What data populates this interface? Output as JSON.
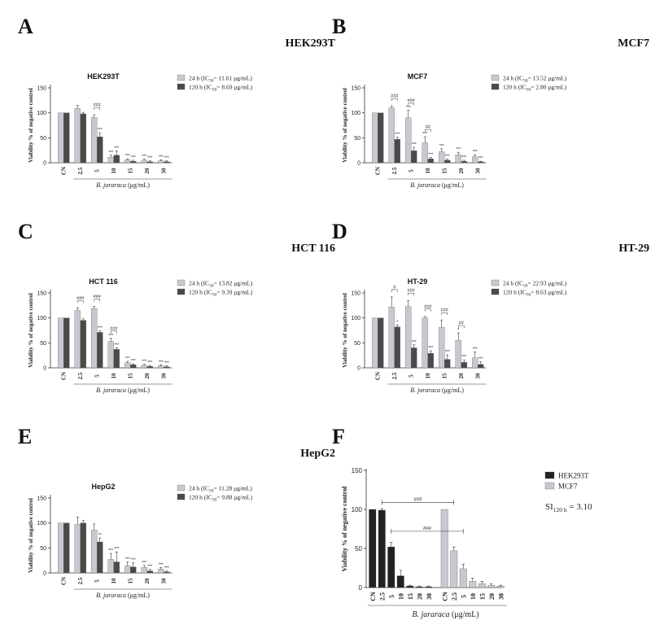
{
  "figure": {
    "x_label_species": "B. jararaca",
    "x_label_unit": "(μg/mL)",
    "y_label": "Viability % of negative control"
  },
  "panels": [
    {
      "letter": "A",
      "title": "HEK293T"
    },
    {
      "letter": "B",
      "title": "MCF7"
    },
    {
      "letter": "C",
      "title": "HCT 116"
    },
    {
      "letter": "D",
      "title": "HT-29"
    },
    {
      "letter": "E",
      "title": "HepG2"
    },
    {
      "letter": "F",
      "title": ""
    }
  ],
  "colors": {
    "light": "#c8c9d0",
    "dark": "#4a4a4a",
    "black": "#222222"
  },
  "chart_data": [
    {
      "type": "bar",
      "title": "HEK293T",
      "ylabel": "Viability % of negative control",
      "xlabel": "B. jararaca (μg/mL)",
      "ylim": [
        0,
        150
      ],
      "categories": [
        "CN",
        "2.5",
        "5",
        "10",
        "15",
        "20",
        "30"
      ],
      "series": [
        {
          "name": "24 h (IC50= 11.61 μg/mL)",
          "values": [
            100,
            109,
            91,
            11,
            6,
            5,
            4
          ],
          "errors": [
            0,
            6,
            5,
            4,
            2,
            2,
            2
          ]
        },
        {
          "name": "120 h (IC50= 8.69 μg/mL)",
          "values": [
            100,
            98,
            52,
            15,
            3,
            2,
            2
          ],
          "errors": [
            0,
            3,
            8,
            9,
            2,
            2,
            2
          ]
        }
      ],
      "annotations_24h": [
        "",
        "",
        "",
        "***",
        "***",
        "***",
        "***"
      ],
      "annotations_120h": [
        "",
        "",
        "***",
        "***",
        "***",
        "***",
        "***"
      ],
      "hash": [
        "",
        "",
        "###",
        "",
        "",
        "",
        ""
      ]
    },
    {
      "type": "bar",
      "title": "MCF7",
      "ylabel": "Viability % of negative control",
      "xlabel": "B. jararaca (μg/mL)",
      "ylim": [
        0,
        150
      ],
      "categories": [
        "CN",
        "2.5",
        "5",
        "10",
        "15",
        "20",
        "30"
      ],
      "series": [
        {
          "name": "24 h (IC50= 13.52 μg/mL)",
          "values": [
            100,
            110,
            90,
            40,
            22,
            16,
            12
          ],
          "errors": [
            0,
            4,
            15,
            12,
            6,
            5,
            4
          ]
        },
        {
          "name": "120 h (IC50= 2.80 μg/mL)",
          "values": [
            100,
            47,
            24,
            8,
            5,
            3,
            2
          ],
          "errors": [
            0,
            4,
            7,
            3,
            2,
            2,
            1
          ]
        }
      ],
      "annotations_24h": [
        "",
        "",
        "***",
        "***",
        "***",
        "***",
        "***"
      ],
      "annotations_120h": [
        "",
        "***",
        "***",
        "***",
        "***",
        "***",
        "***"
      ],
      "hash": [
        "",
        "###",
        "###",
        "##",
        "",
        "",
        ""
      ]
    },
    {
      "type": "bar",
      "title": "HCT 116",
      "ylabel": "Viability % of negative control",
      "xlabel": "B. jararaca (μg/mL)",
      "ylim": [
        0,
        150
      ],
      "categories": [
        "CN",
        "2.5",
        "5",
        "10",
        "15",
        "20",
        "30"
      ],
      "series": [
        {
          "name": "24 h (IC50= 13.82 μg/mL)",
          "values": [
            100,
            115,
            119,
            53,
            10,
            5,
            4
          ],
          "errors": [
            0,
            5,
            4,
            6,
            3,
            2,
            2
          ]
        },
        {
          "name": "120 h (IC50= 9.39 μg/mL)",
          "values": [
            100,
            95,
            71,
            37,
            6,
            3,
            2
          ],
          "errors": [
            0,
            3,
            3,
            3,
            2,
            2,
            2
          ]
        }
      ],
      "annotations_24h": [
        "",
        "",
        "",
        "***",
        "***",
        "***",
        "***"
      ],
      "annotations_120h": [
        "",
        "",
        "***",
        "***",
        "***",
        "***",
        "***"
      ],
      "hash": [
        "",
        "###",
        "###",
        "###",
        "",
        "",
        ""
      ]
    },
    {
      "type": "bar",
      "title": "HT-29",
      "ylabel": "Viability % of negative control",
      "xlabel": "B. jararaca (μg/mL)",
      "ylim": [
        0,
        150
      ],
      "categories": [
        "CN",
        "2.5",
        "5",
        "10",
        "15",
        "20",
        "30"
      ],
      "series": [
        {
          "name": "24 h (IC50= 22.93 μg/mL)",
          "values": [
            100,
            122,
            123,
            100,
            81,
            55,
            20
          ],
          "errors": [
            0,
            20,
            12,
            3,
            15,
            15,
            12
          ]
        },
        {
          "name": "120 h (IC50= 8.63 μg/mL)",
          "values": [
            100,
            82,
            40,
            29,
            17,
            11,
            7
          ],
          "errors": [
            0,
            4,
            6,
            5,
            9,
            5,
            5
          ]
        }
      ],
      "annotations_24h": [
        "",
        "",
        "",
        "",
        "",
        "*",
        "***"
      ],
      "annotations_120h": [
        "",
        "*",
        "***",
        "***",
        "***",
        "***",
        "***"
      ],
      "hash": [
        "",
        "#",
        "###",
        "###",
        "###",
        "##",
        ""
      ]
    },
    {
      "type": "bar",
      "title": "HepG2",
      "ylabel": "Viability % of negative control",
      "xlabel": "B. jararaca (μg/mL)",
      "ylim": [
        0,
        150
      ],
      "categories": [
        "CN",
        "2.5",
        "5",
        "10",
        "15",
        "20",
        "30"
      ],
      "series": [
        {
          "name": "24 h (IC50= 11.28 μg/mL)",
          "values": [
            100,
            97,
            86,
            27,
            14,
            11,
            8
          ],
          "errors": [
            0,
            15,
            12,
            12,
            8,
            4,
            3
          ]
        },
        {
          "name": "120 h (IC50= 9.88 μg/mL)",
          "values": [
            100,
            100,
            62,
            22,
            12,
            4,
            2
          ],
          "errors": [
            0,
            5,
            8,
            20,
            8,
            3,
            2
          ]
        }
      ],
      "annotations_24h": [
        "",
        "",
        "",
        "***",
        "***",
        "***",
        "***"
      ],
      "annotations_120h": [
        "",
        "",
        "**",
        "***",
        "***",
        "***",
        "***"
      ],
      "hash": [
        "",
        "",
        "",
        "",
        "",
        "",
        ""
      ]
    },
    {
      "type": "bar",
      "title": "",
      "ylabel": "Viability % of negative control",
      "xlabel": "B. jararaca (μg/mL)",
      "ylim": [
        0,
        150
      ],
      "categories": [
        "CN",
        "2.5",
        "5",
        "10",
        "15",
        "20",
        "30",
        "CN",
        "2.5",
        "5",
        "10",
        "15",
        "20",
        "30"
      ],
      "series": [
        {
          "name": "HEK293T",
          "values": [
            100,
            99,
            52,
            15,
            2,
            1,
            1,
            null,
            null,
            null,
            null,
            null,
            null,
            null
          ],
          "errors": [
            0,
            2,
            6,
            7,
            1,
            1,
            1,
            0,
            0,
            0,
            0,
            0,
            0,
            0
          ]
        },
        {
          "name": "MCF7",
          "values": [
            null,
            null,
            null,
            null,
            null,
            null,
            null,
            100,
            47,
            24,
            8,
            5,
            3,
            2
          ],
          "errors": [
            0,
            0,
            0,
            0,
            0,
            0,
            0,
            0,
            5,
            6,
            4,
            3,
            2,
            1
          ]
        }
      ],
      "brackets": [
        {
          "from": 1,
          "to": 8,
          "y": 109,
          "label": "###"
        },
        {
          "from": 2,
          "to": 9,
          "y": 72,
          "label": "###"
        }
      ],
      "si_text": "SI",
      "si_sub": "120 h",
      "si_value": " = 3.10"
    }
  ]
}
